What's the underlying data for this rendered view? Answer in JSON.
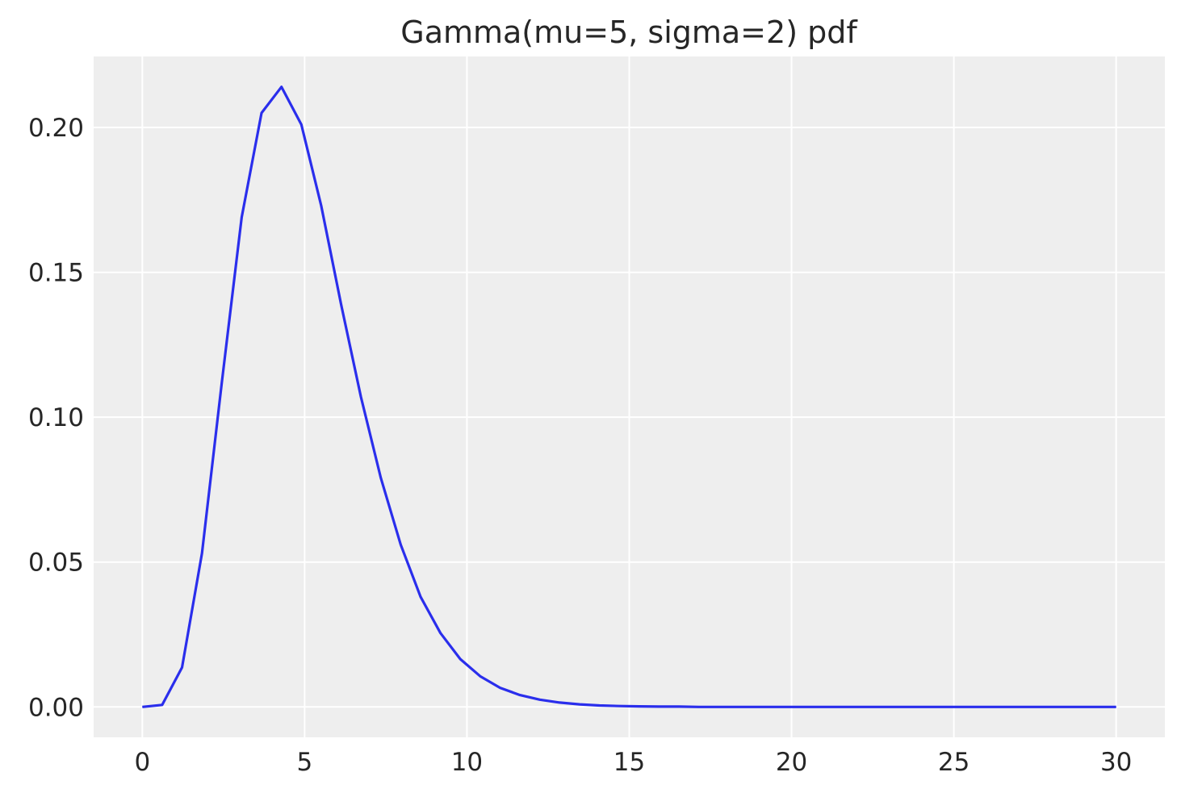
{
  "chart_data": {
    "type": "line",
    "title": "Gamma(mu=5, sigma=2) pdf",
    "xlabel": "",
    "ylabel": "",
    "xlim": [
      -1.5,
      31.5
    ],
    "ylim": [
      -0.0105,
      0.2245
    ],
    "xticks": [
      0,
      5,
      10,
      15,
      20,
      25,
      30
    ],
    "xtick_labels": [
      "0",
      "5",
      "10",
      "15",
      "20",
      "25",
      "30"
    ],
    "yticks": [
      0.0,
      0.05,
      0.1,
      0.15,
      0.2
    ],
    "ytick_labels": [
      "0.00",
      "0.05",
      "0.10",
      "0.15",
      "0.20"
    ],
    "grid": true,
    "series": [
      {
        "color": "#2a2eec",
        "x": [
          0.0,
          0.612,
          1.224,
          1.837,
          2.449,
          3.061,
          3.673,
          4.286,
          4.898,
          5.51,
          6.122,
          6.735,
          7.347,
          7.959,
          8.571,
          9.184,
          9.796,
          10.408,
          11.02,
          11.633,
          12.245,
          12.857,
          13.469,
          14.082,
          14.694,
          15.306,
          15.918,
          16.531,
          17.143,
          17.755,
          18.367,
          18.98,
          19.592,
          20.204,
          20.816,
          21.429,
          22.041,
          22.653,
          23.265,
          23.878,
          24.49,
          25.102,
          25.714,
          26.327,
          26.939,
          27.551,
          28.163,
          28.776,
          29.388,
          30.0
        ],
        "y": [
          0.0,
          0.0007,
          0.0136,
          0.053,
          0.112,
          0.169,
          0.205,
          0.214,
          0.201,
          0.173,
          0.139,
          0.107,
          0.079,
          0.056,
          0.038,
          0.0255,
          0.0165,
          0.0106,
          0.0066,
          0.0041,
          0.0025,
          0.0015,
          0.0009,
          0.0005,
          0.0003,
          0.0002,
          0.0001,
          0.0001,
          0.0,
          0.0,
          0.0,
          0.0,
          0.0,
          0.0,
          0.0,
          0.0,
          0.0,
          0.0,
          0.0,
          0.0,
          0.0,
          0.0,
          0.0,
          0.0,
          0.0,
          0.0,
          0.0,
          0.0,
          0.0,
          0.0
        ]
      }
    ]
  }
}
